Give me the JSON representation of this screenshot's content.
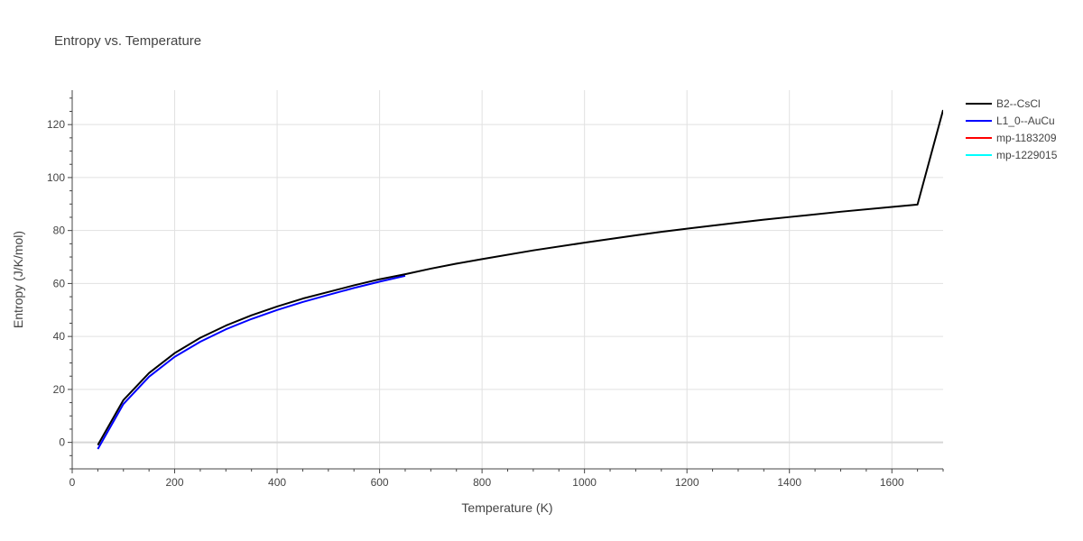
{
  "chart_data": {
    "type": "line",
    "title": "Entropy vs. Temperature",
    "xlabel": "Temperature (K)",
    "ylabel": "Entropy (J/K/mol)",
    "xlim": [
      0,
      1700
    ],
    "ylim": [
      -10,
      133
    ],
    "xticks": [
      0,
      200,
      400,
      600,
      800,
      1000,
      1200,
      1400,
      1600
    ],
    "yticks": [
      0,
      20,
      40,
      60,
      80,
      100,
      120
    ],
    "grid": true,
    "legend_position": "top-right",
    "series": [
      {
        "name": "B2--CsCl",
        "color": "#000000",
        "x": [
          50,
          100,
          150,
          200,
          250,
          300,
          350,
          400,
          450,
          500,
          550,
          600,
          650,
          700,
          750,
          800,
          900,
          1000,
          1100,
          1150,
          1200,
          1300,
          1350,
          1400,
          1500,
          1600,
          1650,
          1700
        ],
        "y": [
          -1.0,
          16.0,
          26.2,
          33.7,
          39.5,
          44.1,
          48.0,
          51.3,
          54.3,
          56.8,
          59.3,
          61.6,
          63.5,
          65.6,
          67.5,
          69.2,
          72.5,
          75.4,
          78.2,
          79.5,
          80.7,
          83.0,
          84.1,
          85.1,
          87.1,
          88.9,
          89.8,
          125.5
        ]
      },
      {
        "name": "L1_0--AuCu",
        "color": "#0000ff",
        "x": [
          50,
          100,
          150,
          200,
          250,
          300,
          350,
          400,
          450,
          500,
          550,
          600,
          650
        ],
        "y": [
          -2.5,
          14.5,
          24.8,
          32.3,
          38.0,
          42.7,
          46.6,
          50.0,
          53.0,
          55.7,
          58.3,
          60.7,
          62.9
        ]
      },
      {
        "name": "mp-1183209",
        "color": "#ff0000",
        "x": [],
        "y": []
      },
      {
        "name": "mp-1229015",
        "color": "#00ffff",
        "x": [],
        "y": []
      }
    ]
  }
}
